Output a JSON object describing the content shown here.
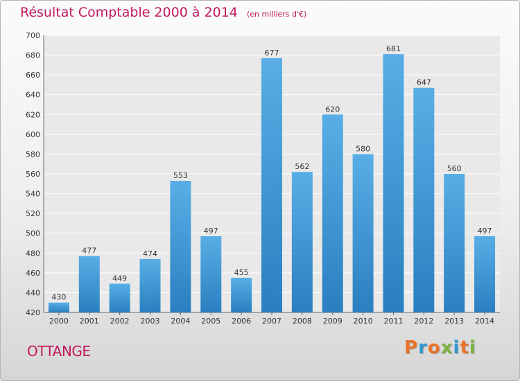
{
  "title": "Résultat Comptable 2000 à 2014",
  "unit": "(en milliers d'€)",
  "commune": "OTTANGE",
  "logo": [
    "P",
    "r",
    "o",
    "x",
    "i",
    "t",
    "i"
  ],
  "colors": {
    "title": "#c2185b",
    "bar_light": "#5aaee6",
    "bar_dark": "#2a7fc0",
    "logo": [
      "#e8732a",
      "#2e9ad0",
      "#e8732a",
      "#7cb342",
      "#2e9ad0",
      "#e8732a",
      "#7cb342"
    ]
  },
  "chart_data": {
    "type": "bar",
    "categories": [
      "2000",
      "2001",
      "2002",
      "2003",
      "2004",
      "2005",
      "2006",
      "2007",
      "2008",
      "2009",
      "2010",
      "2011",
      "2012",
      "2013",
      "2014"
    ],
    "values": [
      430,
      477,
      449,
      474,
      553,
      497,
      455,
      677,
      562,
      620,
      580,
      681,
      647,
      560,
      497
    ],
    "ylim": [
      420,
      700
    ],
    "yticks": [
      420,
      440,
      460,
      480,
      500,
      520,
      540,
      560,
      580,
      600,
      620,
      640,
      660,
      680,
      700
    ],
    "grid": true
  }
}
